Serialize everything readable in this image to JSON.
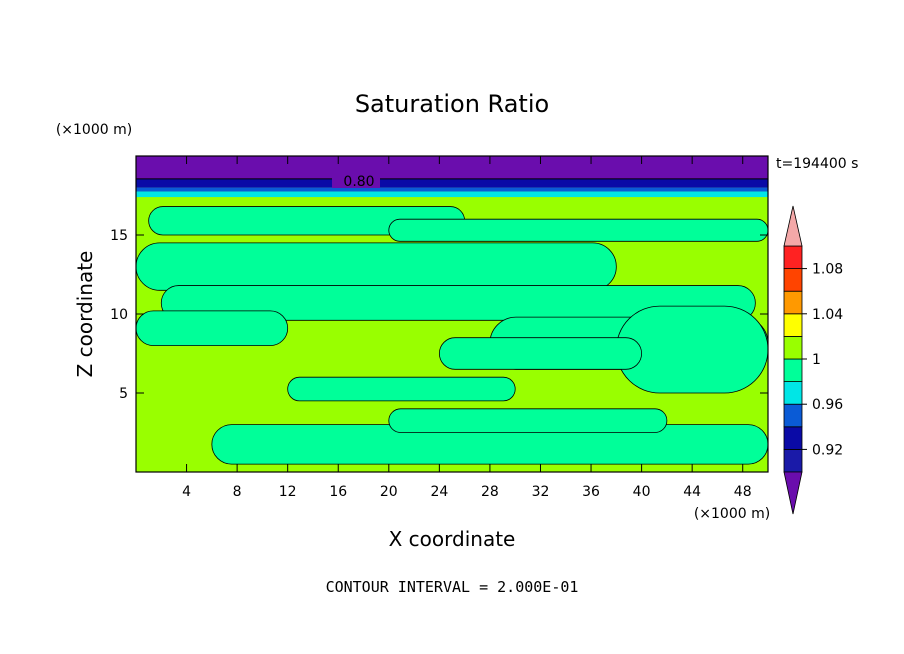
{
  "chart_data": {
    "type": "heatmap",
    "title": "Saturation Ratio",
    "xlabel": "X coordinate",
    "ylabel": "Z coordinate",
    "x_unit": "(×1000 m)",
    "y_unit": "(×1000 m)",
    "time_label": "t=194400 s",
    "footer": "CONTOUR INTERVAL = 2.000E-01",
    "contour_label": "0.80",
    "xlim": [
      0,
      50
    ],
    "ylim": [
      0,
      20
    ],
    "x_ticks": [
      4,
      8,
      12,
      16,
      20,
      24,
      28,
      32,
      36,
      40,
      44,
      48
    ],
    "y_ticks": [
      5,
      10,
      15
    ],
    "colorbar": {
      "levels": [
        0.9,
        0.92,
        0.94,
        0.96,
        0.98,
        1.0,
        1.02,
        1.04,
        1.06,
        1.08,
        1.1
      ],
      "tick_labels": [
        "0.92",
        "0.96",
        "1",
        "1.04",
        "1.08"
      ],
      "tick_values": [
        0.92,
        0.96,
        1.0,
        1.04,
        1.08
      ],
      "colors": [
        "#6a0dad",
        "#1a1aa8",
        "#0a0aa6",
        "#0a5bd6",
        "#00e6e6",
        "#00ff99",
        "#99ff00",
        "#ffff00",
        "#ff9900",
        "#ff4400",
        "#ff2222",
        "#f4a8a8"
      ],
      "under_color": "#6a0dad",
      "over_color": "#f4a8a8"
    },
    "regions": {
      "background_ratio": 1.0,
      "top_layer_ratio": 0.8,
      "top_layer_z": [
        18.0,
        20.0
      ],
      "moist_bands": [
        {
          "x": [
            1,
            26
          ],
          "z": [
            15.0,
            16.8
          ],
          "ratio": 0.99
        },
        {
          "x": [
            20,
            50
          ],
          "z": [
            14.6,
            16.0
          ],
          "ratio": 0.99
        },
        {
          "x": [
            0,
            38
          ],
          "z": [
            11.5,
            14.5
          ],
          "ratio": 0.99
        },
        {
          "x": [
            2,
            49
          ],
          "z": [
            9.6,
            11.8
          ],
          "ratio": 0.99
        },
        {
          "x": [
            0,
            12
          ],
          "z": [
            8.0,
            10.2
          ],
          "ratio": 0.99
        },
        {
          "x": [
            28,
            50
          ],
          "z": [
            6.5,
            9.8
          ],
          "ratio": 0.99
        },
        {
          "x": [
            38,
            50
          ],
          "z": [
            5.0,
            10.5
          ],
          "ratio": 0.99
        },
        {
          "x": [
            24,
            40
          ],
          "z": [
            6.5,
            8.5
          ],
          "ratio": 0.99
        },
        {
          "x": [
            12,
            30
          ],
          "z": [
            4.5,
            6.0
          ],
          "ratio": 0.99
        },
        {
          "x": [
            6,
            50
          ],
          "z": [
            0.5,
            3.0
          ],
          "ratio": 0.99
        },
        {
          "x": [
            20,
            42
          ],
          "z": [
            2.5,
            4.0
          ],
          "ratio": 0.99
        }
      ]
    }
  }
}
